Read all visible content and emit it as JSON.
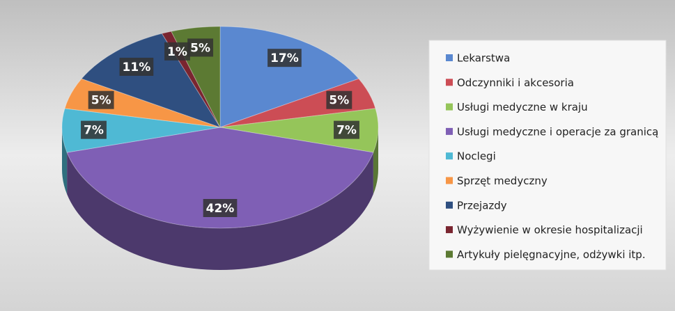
{
  "chart_data": {
    "type": "pie3d",
    "categories": [
      "Lekarstwa",
      "Odczynniki i akcesoria",
      "Usługi medyczne w kraju",
      "Usługi medyczne i operacje za granicą",
      "Noclegi",
      "Sprzęt medyczny",
      "Przejazdy",
      "Wyżywienie w okresie hospitalizacji",
      "Artykuły pielęgnacyjne, odżywki itp."
    ],
    "values": [
      17,
      5,
      7,
      42,
      7,
      5,
      11,
      1,
      5
    ],
    "value_labels": [
      "17%",
      "5%",
      "7%",
      "42%",
      "7%",
      "5%",
      "11%",
      "1%",
      "5%"
    ],
    "colors": [
      "#5a88d0",
      "#cc4d55",
      "#95c55a",
      "#7f5fb5",
      "#4fb9d4",
      "#f79646",
      "#2f4f80",
      "#7a2530",
      "#5c7a33"
    ],
    "legend": "right"
  }
}
